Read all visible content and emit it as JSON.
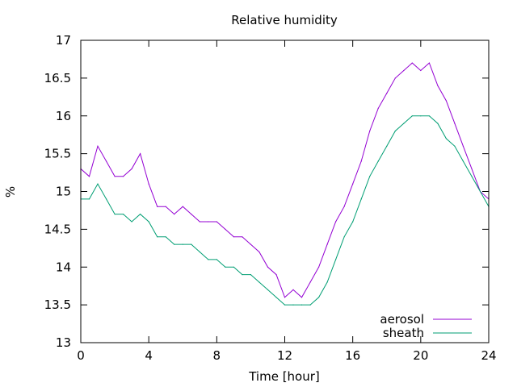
{
  "chart_data": {
    "type": "line",
    "title": "Relative humidity",
    "xlabel": "Time [hour]",
    "ylabel": "%",
    "xlim": [
      0,
      24
    ],
    "ylim": [
      13,
      17
    ],
    "xticks": [
      "0",
      "4",
      "8",
      "12",
      "16",
      "20",
      "24"
    ],
    "yticks": [
      "13",
      "13.5",
      "14",
      "14.5",
      "15",
      "15.5",
      "16",
      "16.5",
      "17"
    ],
    "grid": false,
    "legend_position": "bottom-right",
    "series": [
      {
        "name": "aerosol",
        "color": "#9400d3",
        "x": [
          0,
          0.5,
          1,
          1.5,
          2,
          2.5,
          3,
          3.5,
          4,
          4.5,
          5,
          5.5,
          6,
          6.5,
          7,
          7.5,
          8,
          8.5,
          9,
          9.5,
          10,
          10.5,
          11,
          11.5,
          12,
          12.5,
          13,
          13.5,
          14,
          14.5,
          15,
          15.5,
          16,
          16.5,
          17,
          17.5,
          18,
          18.5,
          19,
          19.5,
          20,
          20.5,
          21,
          21.5,
          22,
          22.5,
          23,
          23.5,
          24
        ],
        "y": [
          15.3,
          15.2,
          15.6,
          15.4,
          15.2,
          15.2,
          15.3,
          15.5,
          15.1,
          14.8,
          14.8,
          14.7,
          14.8,
          14.7,
          14.6,
          14.6,
          14.6,
          14.5,
          14.4,
          14.4,
          14.3,
          14.2,
          14.0,
          13.9,
          13.6,
          13.7,
          13.6,
          13.8,
          14.0,
          14.3,
          14.6,
          14.8,
          15.1,
          15.4,
          15.8,
          16.1,
          16.3,
          16.5,
          16.6,
          16.7,
          16.6,
          16.7,
          16.4,
          16.2,
          15.9,
          15.6,
          15.3,
          15.0,
          14.9
        ]
      },
      {
        "name": "sheath",
        "color": "#009e73",
        "x": [
          0,
          0.5,
          1,
          1.5,
          2,
          2.5,
          3,
          3.5,
          4,
          4.5,
          5,
          5.5,
          6,
          6.5,
          7,
          7.5,
          8,
          8.5,
          9,
          9.5,
          10,
          10.5,
          11,
          11.5,
          12,
          12.5,
          13,
          13.5,
          14,
          14.5,
          15,
          15.5,
          16,
          16.5,
          17,
          17.5,
          18,
          18.5,
          19,
          19.5,
          20,
          20.5,
          21,
          21.5,
          22,
          22.5,
          23,
          23.5,
          24
        ],
        "y": [
          14.9,
          14.9,
          15.1,
          14.9,
          14.7,
          14.7,
          14.6,
          14.7,
          14.6,
          14.4,
          14.4,
          14.3,
          14.3,
          14.3,
          14.2,
          14.1,
          14.1,
          14.0,
          14.0,
          13.9,
          13.9,
          13.8,
          13.7,
          13.6,
          13.5,
          13.5,
          13.5,
          13.5,
          13.6,
          13.8,
          14.1,
          14.4,
          14.6,
          14.9,
          15.2,
          15.4,
          15.6,
          15.8,
          15.9,
          16.0,
          16.0,
          16.0,
          15.9,
          15.7,
          15.6,
          15.4,
          15.2,
          15.0,
          14.8
        ]
      }
    ]
  }
}
